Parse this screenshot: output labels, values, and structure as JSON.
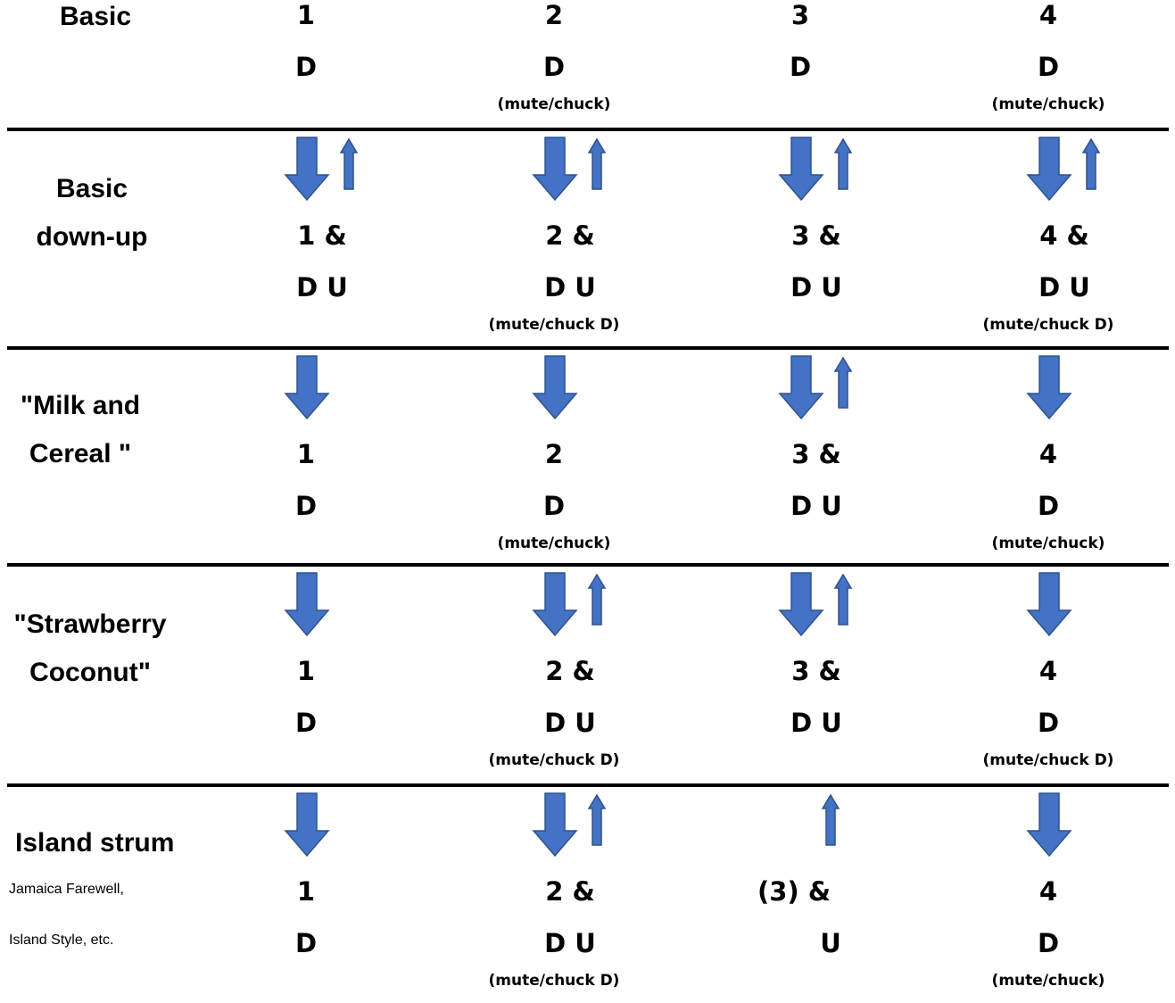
{
  "colors": {
    "arrow_fill": "#4472C4",
    "arrow_stroke": "#2F528F",
    "divider": "#000000"
  },
  "sections": [
    {
      "title_lines": [
        "Basic"
      ],
      "subtitle_lines": [],
      "beats": [
        {
          "count": "1",
          "strum": "D",
          "note": "",
          "arrows": []
        },
        {
          "count": "2",
          "strum": "D",
          "note": "(mute/chuck)",
          "arrows": []
        },
        {
          "count": "3",
          "strum": "D",
          "note": "",
          "arrows": []
        },
        {
          "count": "4",
          "strum": "D",
          "note": "(mute/chuck)",
          "arrows": []
        }
      ]
    },
    {
      "title_lines": [
        "Basic",
        "down-up"
      ],
      "subtitle_lines": [],
      "beats": [
        {
          "count": "1 &",
          "strum": "D U",
          "note": "",
          "arrows": [
            "down-arrow-icon",
            "up-arrow-icon"
          ]
        },
        {
          "count": "2 &",
          "strum": "D U",
          "note": "(mute/chuck D)",
          "arrows": [
            "down-arrow-icon",
            "up-arrow-icon"
          ]
        },
        {
          "count": "3 &",
          "strum": "D U",
          "note": "",
          "arrows": [
            "down-arrow-icon",
            "up-arrow-icon"
          ]
        },
        {
          "count": "4 &",
          "strum": "D U",
          "note": "(mute/chuck D)",
          "arrows": [
            "down-arrow-icon",
            "up-arrow-icon"
          ]
        }
      ]
    },
    {
      "title_lines": [
        "\"Milk and",
        "Cereal \""
      ],
      "subtitle_lines": [],
      "beats": [
        {
          "count": "1",
          "strum": "D",
          "note": "",
          "arrows": [
            "down-arrow-icon"
          ]
        },
        {
          "count": "2",
          "strum": "D",
          "note": "(mute/chuck)",
          "arrows": [
            "down-arrow-icon"
          ]
        },
        {
          "count": "3 &",
          "strum": "D U",
          "note": "",
          "arrows": [
            "down-arrow-icon",
            "up-arrow-icon"
          ]
        },
        {
          "count": "4",
          "strum": "D",
          "note": "(mute/chuck)",
          "arrows": [
            "down-arrow-icon"
          ]
        }
      ]
    },
    {
      "title_lines": [
        "\"Strawberry",
        "Coconut\""
      ],
      "subtitle_lines": [],
      "beats": [
        {
          "count": "1",
          "strum": "D",
          "note": "",
          "arrows": [
            "down-arrow-icon"
          ]
        },
        {
          "count": "2 &",
          "strum": "D U",
          "note": "(mute/chuck D)",
          "arrows": [
            "down-arrow-icon",
            "up-arrow-icon"
          ]
        },
        {
          "count": "3 &",
          "strum": "D U",
          "note": "",
          "arrows": [
            "down-arrow-icon",
            "up-arrow-icon"
          ]
        },
        {
          "count": "4",
          "strum": "D",
          "note": "(mute/chuck D)",
          "arrows": [
            "down-arrow-icon"
          ]
        }
      ]
    },
    {
      "title_lines": [
        "Island strum"
      ],
      "subtitle_lines": [
        "Jamaica Farewell,",
        "Island Style, etc."
      ],
      "beats": [
        {
          "count": "1",
          "strum": "D",
          "note": "",
          "arrows": [
            "down-arrow-icon"
          ]
        },
        {
          "count": "2 &",
          "strum": "D U",
          "note": "(mute/chuck D)",
          "arrows": [
            "down-arrow-icon",
            "up-arrow-icon"
          ]
        },
        {
          "count": "(3) &",
          "strum": "U",
          "note": "",
          "arrows": [
            "up-arrow-icon"
          ]
        },
        {
          "count": "4",
          "strum": "D",
          "note": "(mute/chuck)",
          "arrows": [
            "down-arrow-icon"
          ]
        }
      ]
    }
  ]
}
